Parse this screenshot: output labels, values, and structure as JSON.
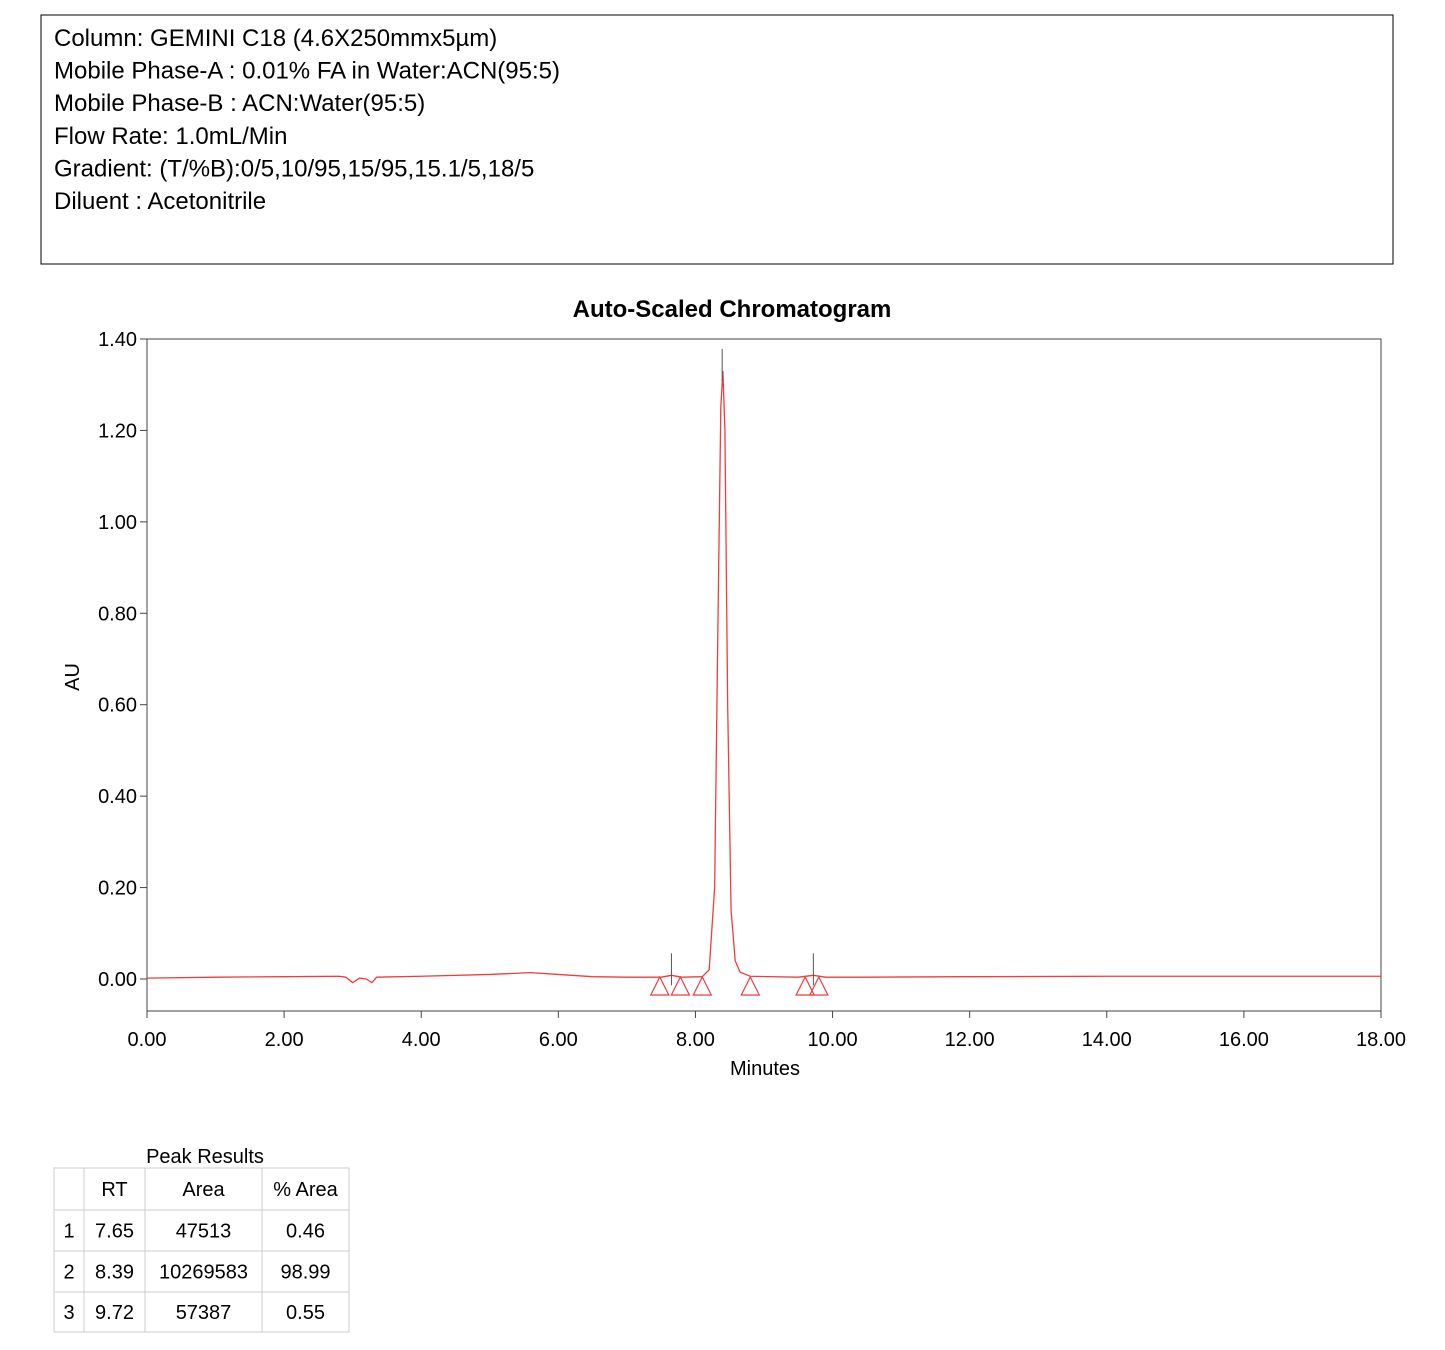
{
  "header": {
    "lines": [
      "Column: GEMINI C18 (4.6X250mmx5µm)",
      "Mobile Phase-A : 0.01% FA  in Water:ACN(95:5)",
      "Mobile Phase-B : ACN:Water(95:5)",
      "Flow Rate: 1.0mL/Min",
      "Gradient: (T/%B):0/5,10/95,15/95,15.1/5,18/5",
      "Diluent : Acetonitrile"
    ]
  },
  "chart_data": {
    "type": "line",
    "title": "Auto-Scaled Chromatogram",
    "x_label": "Minutes",
    "y_label": "AU",
    "x": [
      0,
      1,
      2,
      2.8,
      2.9,
      3.0,
      3.1,
      3.2,
      3.28,
      3.35,
      4,
      5,
      5.6,
      6.0,
      6.5,
      7.0,
      7.5,
      7.65,
      7.8,
      8.1,
      8.2,
      8.28,
      8.33,
      8.37,
      8.4,
      8.43,
      8.47,
      8.52,
      8.58,
      8.65,
      8.8,
      9.5,
      9.72,
      9.9,
      10.5,
      12,
      14,
      16,
      18
    ],
    "series": [
      {
        "color": "#f03c3c",
        "values": [
          0.002,
          0.004,
          0.005,
          0.006,
          0.004,
          -0.008,
          0.002,
          0.0,
          -0.008,
          0.004,
          0.006,
          0.01,
          0.014,
          0.01,
          0.005,
          0.004,
          0.004,
          0.008,
          0.004,
          0.005,
          0.02,
          0.2,
          0.8,
          1.25,
          1.33,
          1.2,
          0.6,
          0.15,
          0.04,
          0.015,
          0.006,
          0.004,
          0.008,
          0.004,
          0.004,
          0.005,
          0.006,
          0.006,
          0.006
        ]
      }
    ],
    "peak_marks": [
      7.65,
      8.39,
      9.72
    ],
    "integration_marks": [
      7.48,
      7.78,
      8.1,
      8.8,
      9.6,
      9.8
    ],
    "xlim": [
      0,
      18
    ],
    "ylim": [
      -0.07,
      1.4
    ],
    "xticks": [
      {
        "value": 0,
        "label": "0.00"
      },
      {
        "value": 2,
        "label": "2.00"
      },
      {
        "value": 4,
        "label": "4.00"
      },
      {
        "value": 6,
        "label": "6.00"
      },
      {
        "value": 8,
        "label": "8.00"
      },
      {
        "value": 10,
        "label": "10.00"
      },
      {
        "value": 12,
        "label": "12.00"
      },
      {
        "value": 14,
        "label": "14.00"
      },
      {
        "value": 16,
        "label": "16.00"
      },
      {
        "value": 18,
        "label": "18.00"
      }
    ],
    "yticks": [
      {
        "value": 0,
        "label": "0.00"
      },
      {
        "value": 0.2,
        "label": "0.20"
      },
      {
        "value": 0.4,
        "label": "0.40"
      },
      {
        "value": 0.6,
        "label": "0.60"
      },
      {
        "value": 0.8,
        "label": "0.80"
      },
      {
        "value": 1.0,
        "label": "1.00"
      },
      {
        "value": 1.2,
        "label": "1.20"
      },
      {
        "value": 1.4,
        "label": "1.40"
      }
    ]
  },
  "table": {
    "title": "Peak Results",
    "columns": [
      "RT",
      "Area",
      "% Area"
    ],
    "rows": [
      [
        "1",
        "7.65",
        "47513",
        "0.46"
      ],
      [
        "2",
        "8.39",
        "10269583",
        "98.99"
      ],
      [
        "3",
        "9.72",
        "57387",
        "0.55"
      ]
    ]
  }
}
